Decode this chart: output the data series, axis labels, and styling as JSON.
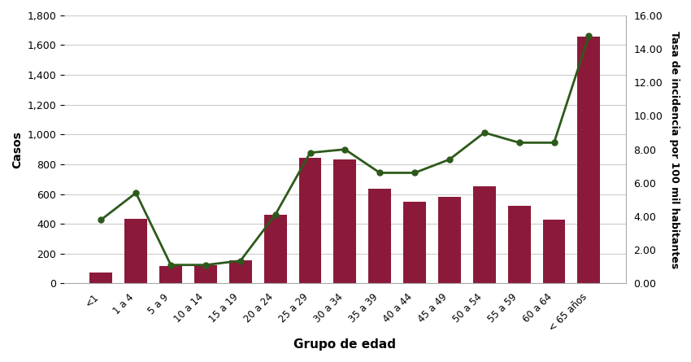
{
  "categories": [
    "<1",
    "1 a 4",
    "5 a 9",
    "10 a 14",
    "15 a 19",
    "20 a 24",
    "25 a 29",
    "30 a 34",
    "35 a 39",
    "40 a 44",
    "45 a 49",
    "50 a 54",
    "55 a 59",
    "60 a 64",
    "< 65 años"
  ],
  "bar_values": [
    75,
    435,
    115,
    120,
    155,
    460,
    845,
    835,
    635,
    550,
    580,
    650,
    520,
    430,
    1660
  ],
  "line_values": [
    3.8,
    5.4,
    1.1,
    1.1,
    1.35,
    4.1,
    7.8,
    8.0,
    6.6,
    6.6,
    7.4,
    9.0,
    8.4,
    8.4,
    14.8
  ],
  "bar_color": "#8b1a3a",
  "line_color": "#2d5a1b",
  "xlabel": "Grupo de edad",
  "ylabel_left": "Casos",
  "ylabel_right": "Tasa de incidencia por 100 mil habitantes",
  "ylim_left": [
    0,
    1800
  ],
  "ylim_right": [
    0,
    16.0
  ],
  "yticks_left": [
    0,
    200,
    400,
    600,
    800,
    1000,
    1200,
    1400,
    1600,
    1800
  ],
  "yticks_right": [
    0.0,
    2.0,
    4.0,
    6.0,
    8.0,
    10.0,
    12.0,
    14.0,
    16.0
  ],
  "background_color": "#ffffff",
  "plot_bg_color": "#ffffff",
  "grid_color": "#cccccc",
  "spine_color": "#aaaaaa"
}
